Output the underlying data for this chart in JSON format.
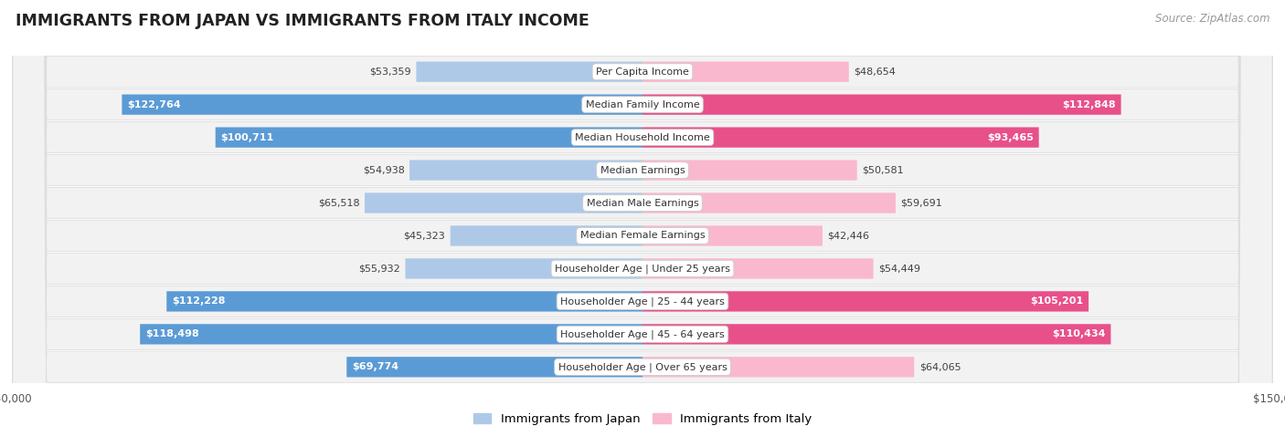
{
  "title": "IMMIGRANTS FROM JAPAN VS IMMIGRANTS FROM ITALY INCOME",
  "source": "Source: ZipAtlas.com",
  "categories": [
    "Per Capita Income",
    "Median Family Income",
    "Median Household Income",
    "Median Earnings",
    "Median Male Earnings",
    "Median Female Earnings",
    "Householder Age | Under 25 years",
    "Householder Age | 25 - 44 years",
    "Householder Age | 45 - 64 years",
    "Householder Age | Over 65 years"
  ],
  "japan_values": [
    53359,
    122764,
    100711,
    54938,
    65518,
    45323,
    55932,
    112228,
    118498,
    69774
  ],
  "italy_values": [
    48654,
    112848,
    93465,
    50581,
    59691,
    42446,
    54449,
    105201,
    110434,
    64065
  ],
  "japan_labels": [
    "$53,359",
    "$122,764",
    "$100,711",
    "$54,938",
    "$65,518",
    "$45,323",
    "$55,932",
    "$112,228",
    "$118,498",
    "$69,774"
  ],
  "italy_labels": [
    "$48,654",
    "$112,848",
    "$93,465",
    "$50,581",
    "$59,691",
    "$42,446",
    "$54,449",
    "$105,201",
    "$110,434",
    "$64,065"
  ],
  "max_value": 150000,
  "japan_light_color": "#aec9e8",
  "japan_dark_color": "#5b9bd5",
  "italy_light_color": "#f9b8ce",
  "italy_dark_color": "#e8508a",
  "japan_threshold": 67500,
  "italy_threshold": 67500,
  "fig_bg": "#ffffff",
  "row_bg": "#f2f2f2",
  "row_border": "#dddddd"
}
